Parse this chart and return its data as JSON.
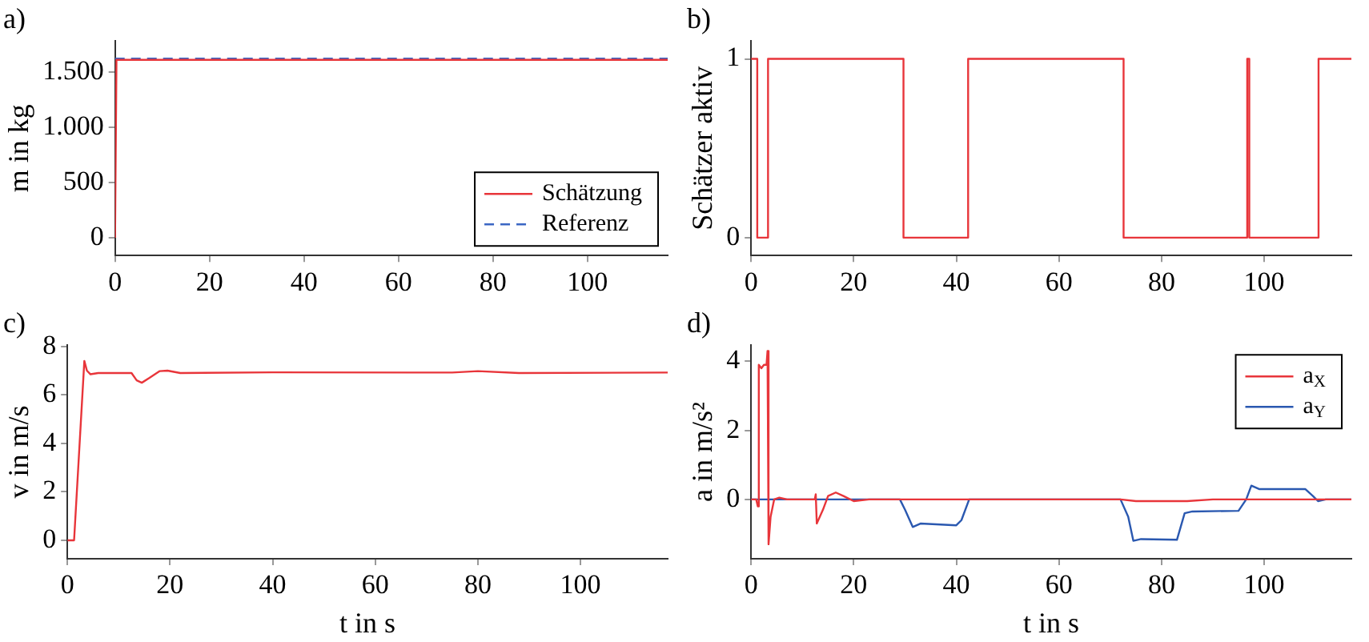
{
  "chart_data": [
    {
      "type": "line",
      "title": "a)",
      "ylabel": "m in kg",
      "xlim": [
        0,
        117
      ],
      "xticks": [
        0,
        20,
        40,
        60,
        80,
        100
      ],
      "ylim": [
        -160,
        1780
      ],
      "yticks": [
        0,
        500,
        {
          "value": 1000,
          "label": "1.000"
        },
        {
          "value": 1500,
          "label": "1.500"
        }
      ],
      "legend": "bottom right",
      "series": [
        {
          "name": "Schätzung",
          "color": "#e8353a",
          "x": [
            0,
            0.3,
            117
          ],
          "values": [
            0,
            1610,
            1610
          ]
        },
        {
          "name": "Referenz",
          "color": "#3a66c4",
          "line_style": "dashed",
          "x": [
            0,
            117
          ],
          "values": [
            1620,
            1620
          ]
        }
      ]
    },
    {
      "type": "step",
      "title": "b)",
      "ylabel": "Schätzer aktiv",
      "xlim": [
        0,
        117
      ],
      "xticks": [
        0,
        20,
        40,
        60,
        80,
        100
      ],
      "ylim": [
        -0.1,
        1.1
      ],
      "yticks": [
        0,
        1
      ],
      "series": [
        {
          "color": "#e8353a",
          "x": [
            0,
            1.2,
            3.3,
            29.7,
            42.3,
            72.6,
            96.7,
            97.1,
            110.6,
            117
          ],
          "values": [
            1,
            0,
            1,
            0,
            1,
            0,
            1,
            0,
            1,
            1
          ]
        }
      ]
    },
    {
      "type": "line",
      "title": "c)",
      "xlabel": "t in s",
      "ylabel": "v in m/s",
      "xlim": [
        0,
        117
      ],
      "xticks": [
        0,
        20,
        40,
        60,
        80,
        100
      ],
      "ylim": [
        -0.76,
        8.05
      ],
      "yticks": [
        0,
        2,
        4,
        6,
        8
      ],
      "series": [
        {
          "color": "#e8353a",
          "x": [
            0,
            1.3,
            3.3,
            3.8,
            4.5,
            6,
            12.5,
            13.5,
            14.5,
            16,
            18,
            19.5,
            22,
            40,
            75,
            80,
            88,
            117
          ],
          "values": [
            0,
            0,
            7.4,
            7.0,
            6.85,
            6.9,
            6.9,
            6.6,
            6.5,
            6.7,
            6.98,
            7.0,
            6.9,
            6.93,
            6.92,
            6.98,
            6.9,
            6.92
          ]
        }
      ]
    },
    {
      "type": "line",
      "title": "d)",
      "xlabel": "t in s",
      "ylabel": "a in m/s²",
      "xlim": [
        0,
        117
      ],
      "xticks": [
        0,
        20,
        40,
        60,
        80,
        100
      ],
      "ylim": [
        -1.72,
        4.47
      ],
      "yticks": [
        0,
        2,
        4
      ],
      "legend": "top right",
      "series": [
        {
          "name": "a$_{X}$",
          "color": "#e8353a",
          "x": [
            0,
            1,
            1.3,
            1.5,
            2,
            2.5,
            3,
            3.2,
            3.4,
            3.8,
            4.5,
            5.5,
            7,
            12.4,
            12.6,
            12.8,
            14,
            15,
            16.5,
            18,
            20,
            23,
            30,
            72,
            75,
            85,
            90,
            117
          ],
          "values": [
            0,
            0,
            -0.2,
            3.9,
            3.8,
            3.9,
            3.9,
            4.3,
            -1.3,
            -0.5,
            0,
            0.05,
            0,
            0,
            0.15,
            -0.7,
            -0.3,
            0.1,
            0.2,
            0.1,
            -0.05,
            0,
            0,
            0,
            -0.05,
            -0.05,
            0,
            0
          ]
        },
        {
          "name": "a$_{Y}$",
          "color": "#2a58b0",
          "x": [
            0,
            29,
            30,
            31.5,
            33,
            40,
            41,
            42.5,
            72,
            73.5,
            74.5,
            76,
            83,
            84.5,
            86,
            95,
            96.5,
            97.5,
            99,
            108,
            109.5,
            110.5,
            112,
            117
          ],
          "values": [
            0,
            0,
            -0.3,
            -0.8,
            -0.7,
            -0.75,
            -0.6,
            0,
            0,
            -0.5,
            -1.2,
            -1.15,
            -1.17,
            -0.4,
            -0.35,
            -0.33,
            0,
            0.4,
            0.3,
            0.3,
            0.1,
            -0.05,
            0,
            0
          ]
        }
      ]
    }
  ]
}
